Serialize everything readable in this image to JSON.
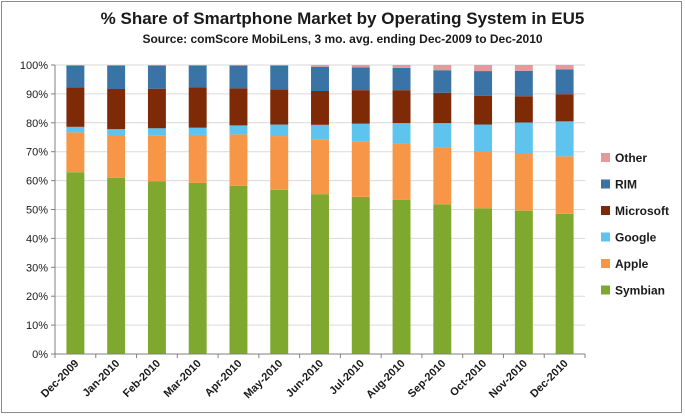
{
  "chart_data": {
    "type": "bar",
    "stacked": true,
    "title": "% Share of Smartphone Market by Operating System in EU5",
    "subtitle": "Source: comScore MobiLens, 3 mo. avg. ending Dec-2009 to Dec-2010",
    "xlabel": "",
    "ylabel": "",
    "ylim": [
      0,
      100
    ],
    "yticks": [
      "0%",
      "10%",
      "20%",
      "30%",
      "40%",
      "50%",
      "60%",
      "70%",
      "80%",
      "90%",
      "100%"
    ],
    "categories": [
      "Dec-2009",
      "Jan-2010",
      "Feb-2010",
      "Mar-2010",
      "Apr-2010",
      "May-2010",
      "Jun-2010",
      "Jul-2010",
      "Aug-2010",
      "Sep-2010",
      "Oct-2010",
      "Nov-2010",
      "Dec-2010"
    ],
    "legend_position": "right",
    "series": [
      {
        "name": "Symbian",
        "color": "#7ea82e",
        "values": [
          62.9,
          61.0,
          59.8,
          59.2,
          58.2,
          56.8,
          55.3,
          54.4,
          53.3,
          51.8,
          50.4,
          49.6,
          48.5
        ]
      },
      {
        "name": "Apple",
        "color": "#f79646",
        "values": [
          13.8,
          14.6,
          15.7,
          16.6,
          17.8,
          18.6,
          18.8,
          19.2,
          19.4,
          19.8,
          19.5,
          19.6,
          19.9
        ]
      },
      {
        "name": "Google",
        "color": "#5ec4ee",
        "values": [
          1.9,
          2.2,
          2.6,
          2.5,
          3.1,
          4.0,
          5.2,
          6.1,
          7.2,
          8.3,
          9.5,
          10.9,
          12.1
        ]
      },
      {
        "name": "Microsoft",
        "color": "#7f2a07",
        "values": [
          13.7,
          13.9,
          13.7,
          13.9,
          12.8,
          12.2,
          11.7,
          11.6,
          11.4,
          10.5,
          9.9,
          9.1,
          9.4
        ]
      },
      {
        "name": "RIM",
        "color": "#3a73a6",
        "values": [
          7.5,
          8.1,
          8.0,
          7.6,
          7.9,
          8.2,
          8.4,
          7.9,
          7.7,
          7.8,
          8.6,
          8.8,
          8.6
        ]
      },
      {
        "name": "Other",
        "color": "#e6999a",
        "values": [
          0.2,
          0.2,
          0.2,
          0.2,
          0.2,
          0.2,
          0.6,
          0.8,
          1.0,
          1.8,
          2.1,
          2.0,
          1.5
        ]
      }
    ],
    "legend_order": [
      "Other",
      "RIM",
      "Microsoft",
      "Google",
      "Apple",
      "Symbian"
    ]
  }
}
